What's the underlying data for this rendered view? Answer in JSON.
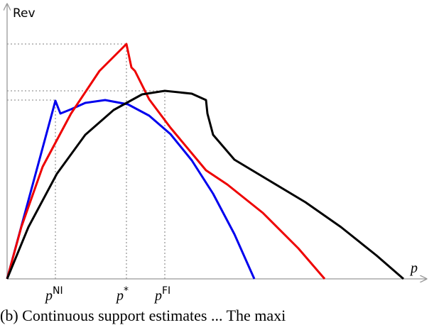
{
  "chart_data": {
    "type": "line",
    "ylabel": "Rev",
    "xlabel": "p",
    "xlim": [
      0,
      590
    ],
    "ylim": [
      0,
      388
    ],
    "series": [
      {
        "color": "#0000ee",
        "x": [
          0,
          68,
          75,
          90,
          110,
          138,
          170,
          200,
          230,
          260,
          290,
          320,
          348
        ],
        "values": [
          0,
          251,
          233,
          239,
          248,
          252,
          246,
          230,
          204,
          167,
          120,
          63,
          0
        ]
      },
      {
        "color": "#ee0000",
        "x": [
          0,
          20,
          50,
          90,
          130,
          168,
          175,
          180,
          200,
          230,
          280,
          310,
          360,
          410,
          447
        ],
        "values": [
          0,
          73,
          158,
          233,
          293,
          331,
          298,
          293,
          253,
          213,
          153,
          133,
          93,
          43,
          0
        ]
      },
      {
        "color": "#000000",
        "x": [
          0,
          30,
          70,
          110,
          150,
          190,
          222,
          260,
          280,
          282,
          290,
          320,
          370,
          420,
          470,
          520,
          558
        ],
        "values": [
          0,
          73,
          148,
          203,
          238,
          260,
          265,
          261,
          252,
          233,
          203,
          168,
          138,
          108,
          73,
          33,
          0
        ]
      }
    ],
    "guides_y": [
      331,
      265,
      252
    ],
    "guides_x": [
      {
        "value": 68,
        "label": "p",
        "sup": "NI",
        "top": 252
      },
      {
        "value": 168,
        "label": "p",
        "sup": "*",
        "top": 331
      },
      {
        "value": 222,
        "label": "p",
        "sup": "FI",
        "top": 265
      }
    ],
    "caption": "(b)  Continuous  support  estimates  ...  The  maxi"
  }
}
